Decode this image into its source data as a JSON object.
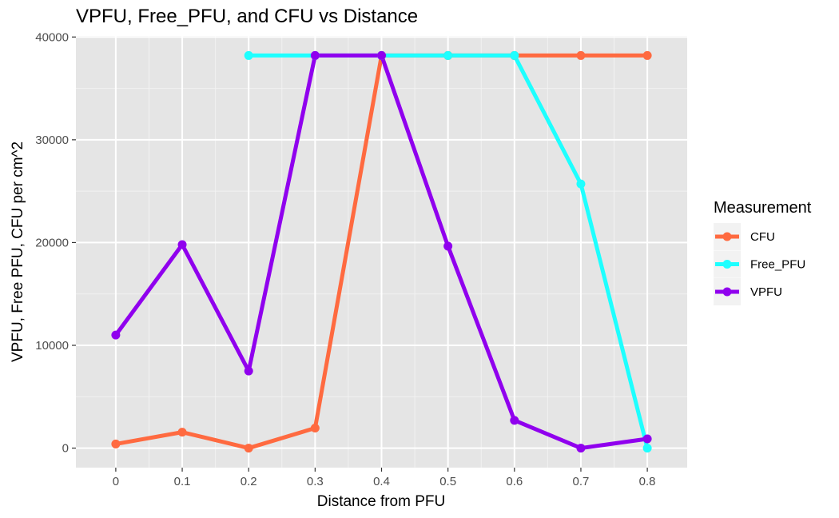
{
  "chart_data": {
    "type": "line",
    "title": "VPFU, Free_PFU, and CFU vs Distance",
    "xlabel": "Distance from PFU",
    "ylabel": "VPFU, Free PFU, CFU per cm^2",
    "x": [
      0,
      0.1,
      0.2,
      0.3,
      0.4,
      0.5,
      0.6,
      0.7,
      0.8
    ],
    "x_tick_labels": [
      "0",
      "0.1",
      "0.2",
      "0.3",
      "0.4",
      "0.5",
      "0.6",
      "0.7",
      "0.8"
    ],
    "xlim": [
      -0.06,
      0.86
    ],
    "ylim": [
      -1900,
      40100
    ],
    "y_ticks": [
      0,
      10000,
      20000,
      30000,
      40000
    ],
    "y_tick_labels": [
      "0",
      "10000",
      "20000",
      "30000",
      "40000"
    ],
    "grid": true,
    "legend": {
      "title": "Measurement",
      "position": "right"
    },
    "series": [
      {
        "name": "CFU",
        "color": "#ff6a40",
        "values": [
          400,
          1550,
          0,
          1950,
          38200,
          38200,
          38200,
          38200,
          38200
        ]
      },
      {
        "name": "Free_PFU",
        "color": "#1effff",
        "values": [
          null,
          null,
          38200,
          38200,
          38200,
          38200,
          38200,
          25700,
          0
        ]
      },
      {
        "name": "VPFU",
        "color": "#9000ee",
        "values": [
          11000,
          19800,
          7500,
          38200,
          38200,
          19650,
          2700,
          0,
          900
        ]
      }
    ]
  }
}
